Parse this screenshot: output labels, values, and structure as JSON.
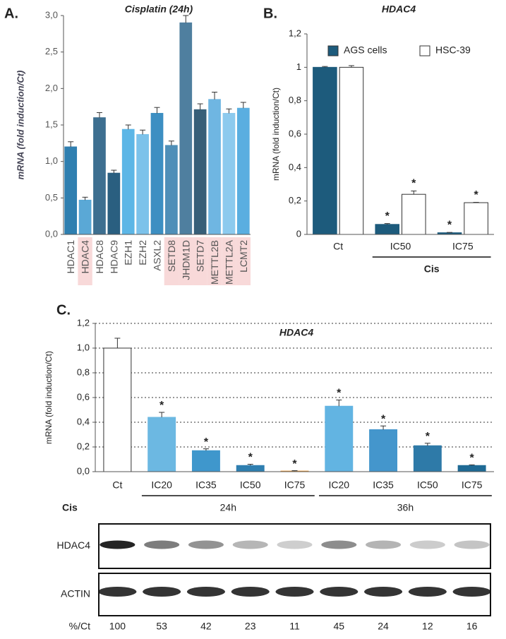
{
  "chart_data": [
    {
      "type": "bar",
      "panel": "A.",
      "title": "Cisplatin (24h)",
      "ylabel": "mRNA (fold induction/Ct)",
      "categories": [
        "HDAC1",
        "HDAC4",
        "HDAC8",
        "HDAC9",
        "EZH1",
        "EZH2",
        "ASXL2",
        "SETD8",
        "JHDM1D",
        "SETD7",
        "METTL2B",
        "METTL2A",
        "LCMT2"
      ],
      "values": [
        1.2,
        0.47,
        1.6,
        0.84,
        1.44,
        1.37,
        1.66,
        1.22,
        2.9,
        1.71,
        1.85,
        1.66,
        1.73
      ],
      "errors": [
        0.07,
        0.04,
        0.07,
        0.04,
        0.06,
        0.06,
        0.08,
        0.06,
        0.1,
        0.08,
        0.1,
        0.06,
        0.08
      ],
      "colors": [
        "#2f7fb0",
        "#5aa8d6",
        "#3d6f90",
        "#2a5f80",
        "#5cb6e6",
        "#7cc2ea",
        "#3d8fc2",
        "#4f8fb8",
        "#4f7f9f",
        "#375f78",
        "#6fb6e2",
        "#8ccaee",
        "#5aaee0"
      ],
      "highlight": [
        false,
        true,
        false,
        false,
        false,
        false,
        false,
        true,
        true,
        true,
        true,
        true,
        true
      ],
      "ylim": [
        0,
        3
      ],
      "yticks": [
        {
          "value": 0,
          "label": "0,0"
        },
        {
          "value": 0.5,
          "label": "0,5"
        },
        {
          "value": 1,
          "label": "1,0"
        },
        {
          "value": 1.5,
          "label": "1,5"
        },
        {
          "value": 2,
          "label": "2,0"
        },
        {
          "value": 2.5,
          "label": "2,5"
        },
        {
          "value": 3,
          "label": "3,0"
        }
      ]
    },
    {
      "type": "grouped_bar",
      "panel": "B.",
      "title": "HDAC4",
      "ylabel": "mRNA (fold induction/Ct)",
      "categories": [
        "Ct",
        "IC50",
        "IC75"
      ],
      "series": [
        {
          "name": "AGS cells",
          "color": "#1d5b7c",
          "values": [
            1,
            0.06,
            0.01
          ],
          "errors": [
            0.005,
            0.005,
            0.002
          ],
          "markers": [
            null,
            "*",
            "*"
          ]
        },
        {
          "name": "HSC-39",
          "color": "#ffffff",
          "values": [
            1,
            0.24,
            0.19
          ],
          "errors": [
            0.01,
            0.02,
            0.002
          ],
          "markers": [
            null,
            "*",
            "*"
          ]
        }
      ],
      "group_spans": [
        {
          "label": "Cis",
          "span": [
            1,
            2
          ]
        }
      ],
      "legend": "top",
      "ylim": [
        0,
        1.2
      ],
      "yticks": [
        0,
        {
          "value": 0.2,
          "label": "0,2"
        },
        {
          "value": 0.4,
          "label": "0,4"
        },
        {
          "value": 0.6,
          "label": "0,6"
        },
        {
          "value": 0.8,
          "label": "0,8"
        },
        1,
        {
          "value": 1.2,
          "label": "1,2"
        }
      ]
    },
    {
      "type": "bar",
      "panel": "C.",
      "title": "HDAC4",
      "ylabel": "mRNA (fold induction/Ct)",
      "categories": [
        "Ct",
        "IC20",
        "IC35",
        "IC50",
        "IC75",
        "IC20",
        "IC35",
        "IC50",
        "IC75"
      ],
      "values": [
        1.0,
        0.44,
        0.17,
        0.05,
        0.005,
        0.53,
        0.34,
        0.21,
        0.05
      ],
      "errors": [
        0.08,
        0.04,
        0.015,
        0.01,
        0.003,
        0.05,
        0.03,
        0.02,
        0.005
      ],
      "colors": [
        "#ffffff",
        "#6cb8e2",
        "#3f97cc",
        "#2f7fb0",
        "#f0a040",
        "#62b4e2",
        "#4496cc",
        "#2e7aa8",
        "#1f6a95"
      ],
      "markers": [
        null,
        "*",
        "*",
        "*",
        "*",
        "*",
        "*",
        "*",
        "*"
      ],
      "group_title": "Cis",
      "group_spans": [
        {
          "label": "24h",
          "span": [
            1,
            4
          ]
        },
        {
          "label": "36h",
          "span": [
            5,
            8
          ]
        }
      ],
      "grid": true,
      "ylim": [
        0,
        1.2
      ],
      "yticks": [
        {
          "value": 0,
          "label": "0,0"
        },
        {
          "value": 0.2,
          "label": "0,2"
        },
        {
          "value": 0.4,
          "label": "0,4"
        },
        {
          "value": 0.6,
          "label": "0,6"
        },
        {
          "value": 0.8,
          "label": "0,8"
        },
        {
          "value": 1,
          "label": "1,0"
        },
        {
          "value": 1.2,
          "label": "1,2"
        }
      ]
    }
  ],
  "blot": {
    "rows": [
      "HDAC4",
      "ACTIN"
    ],
    "quant_label": "%/Ct",
    "quant": [
      100,
      53,
      42,
      23,
      11,
      45,
      24,
      12,
      16
    ]
  }
}
